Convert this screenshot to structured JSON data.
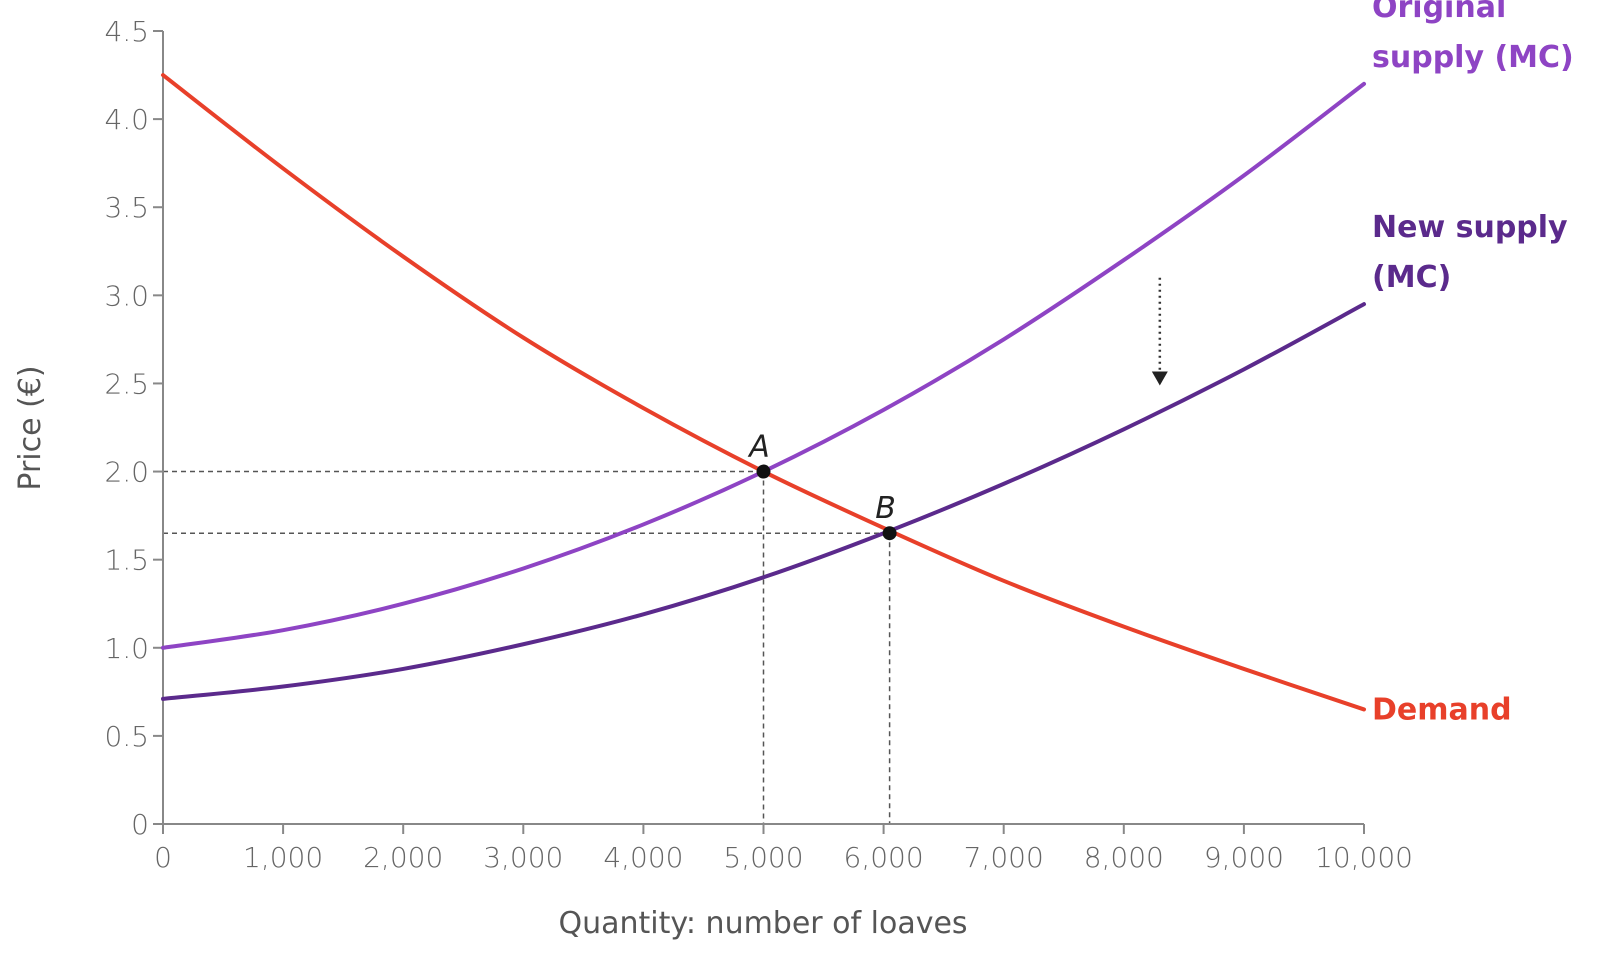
{
  "chart_data": {
    "type": "line",
    "title": "",
    "xlabel": "Quantity: number of loaves",
    "ylabel": "Price (€)",
    "xlim": [
      0,
      10000
    ],
    "ylim": [
      0,
      4.5
    ],
    "x_ticks": [
      0,
      1000,
      2000,
      3000,
      4000,
      5000,
      6000,
      7000,
      8000,
      9000,
      10000
    ],
    "x_tick_labels": [
      "0",
      "1,000",
      "2,000",
      "3,000",
      "4,000",
      "5,000",
      "6,000",
      "7,000",
      "8,000",
      "9,000",
      "10,000"
    ],
    "y_ticks": [
      0,
      0.5,
      1.0,
      1.5,
      2.0,
      2.5,
      3.0,
      3.5,
      4.0,
      4.5
    ],
    "y_tick_labels": [
      "0",
      "0.5",
      "1.0",
      "1.5",
      "2.0",
      "2.5",
      "3.0",
      "3.5",
      "4.0",
      "4.5"
    ],
    "grid": false,
    "series": [
      {
        "name": "Original supply (MC)",
        "label_lines": [
          "Original",
          "supply (MC)"
        ],
        "color": "#8e44c4",
        "x": [
          0,
          1000,
          2000,
          3000,
          4000,
          5000,
          6000,
          7000,
          8000,
          9000,
          10000
        ],
        "y": [
          1.0,
          1.1,
          1.25,
          1.45,
          1.7,
          2.0,
          2.35,
          2.75,
          3.2,
          3.68,
          4.2
        ]
      },
      {
        "name": "New supply (MC)",
        "label_lines": [
          "New supply",
          "(MC)"
        ],
        "color": "#5b2a8c",
        "x": [
          0,
          1000,
          2000,
          3000,
          4000,
          5000,
          6000,
          7000,
          8000,
          9000,
          10000
        ],
        "y": [
          0.71,
          0.78,
          0.88,
          1.02,
          1.19,
          1.4,
          1.65,
          1.93,
          2.24,
          2.58,
          2.95
        ]
      },
      {
        "name": "Demand",
        "label_lines": [
          "Demand"
        ],
        "color": "#e8402a",
        "x": [
          0,
          1000,
          2000,
          3000,
          4000,
          5000,
          6000,
          7000,
          8000,
          9000,
          10000
        ],
        "y": [
          4.25,
          3.72,
          3.22,
          2.76,
          2.36,
          2.0,
          1.68,
          1.38,
          1.12,
          0.88,
          0.65
        ]
      }
    ],
    "points": [
      {
        "label": "A",
        "x": 5000,
        "y": 2.0
      },
      {
        "label": "B",
        "x": 6050,
        "y": 1.65
      }
    ],
    "shift_arrow": {
      "x": 8300,
      "y_from": 3.1,
      "y_to": 2.5
    }
  }
}
